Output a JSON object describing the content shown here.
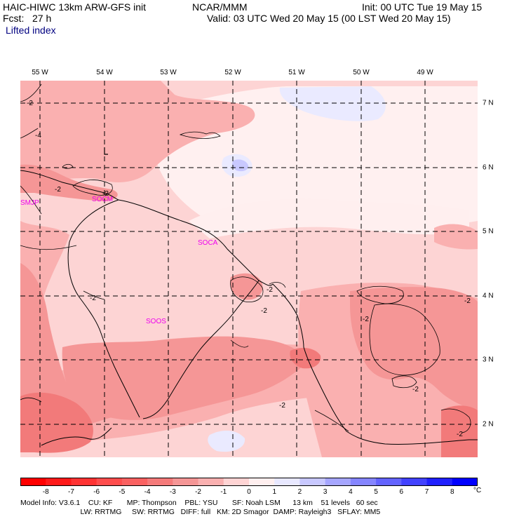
{
  "header": {
    "model_title": "HAIC-HIWC 13km ARW-GFS init",
    "org": "NCAR/MMM",
    "init": "Init: 00 UTC Tue 19 May 15",
    "fcst": "Fcst:   27 h",
    "valid": "Valid: 03 UTC Wed 20 May 15 (00 LST Wed 20 May 15)",
    "field": "Lifted index"
  },
  "longitudes": [
    "55 W",
    "54 W",
    "53 W",
    "52 W",
    "51 W",
    "50 W",
    "49 W"
  ],
  "latitudes": [
    "7 N",
    "6 N",
    "5 N",
    "4 N",
    "3 N",
    "2 N"
  ],
  "stations": [
    "SMJP",
    "SOCM",
    "SOCA",
    "SOOS"
  ],
  "contour_labels": [
    "-2",
    "-2",
    "-4",
    "-2",
    "-2",
    "-2",
    "-2",
    "-2",
    "-2",
    "-2",
    "-2",
    "-2"
  ],
  "colorbar": {
    "ticks": [
      "-8",
      "-7",
      "-6",
      "-5",
      "-4",
      "-3",
      "-2",
      "-1",
      "0",
      "1",
      "2",
      "3",
      "4",
      "5",
      "6",
      "7",
      "8"
    ],
    "unit": "°C",
    "colors": [
      "#ff0000",
      "#ff1a1a",
      "#ff3333",
      "#ff4d4d",
      "#fa6161",
      "#f57a7a",
      "#f59696",
      "#fab0b0",
      "#ffd4d4",
      "#ffefef",
      "#e8e8ff",
      "#c8c8ff",
      "#a6a6ff",
      "#8585ff",
      "#6363ff",
      "#4242ff",
      "#2020ff",
      "#0000ff"
    ]
  },
  "footer": {
    "line1": "Model Info: V3.6.1    CU: KF       MP: Thompson    PBL: YSU       SF: Noah LSM      13 km    51 levels   60 sec",
    "line2": "      LW: RRTMG     SW: RRTMG   DIFF: full   KM: 2D Smagor  DAMP: Rayleigh3   SFLAY: MM5"
  }
}
